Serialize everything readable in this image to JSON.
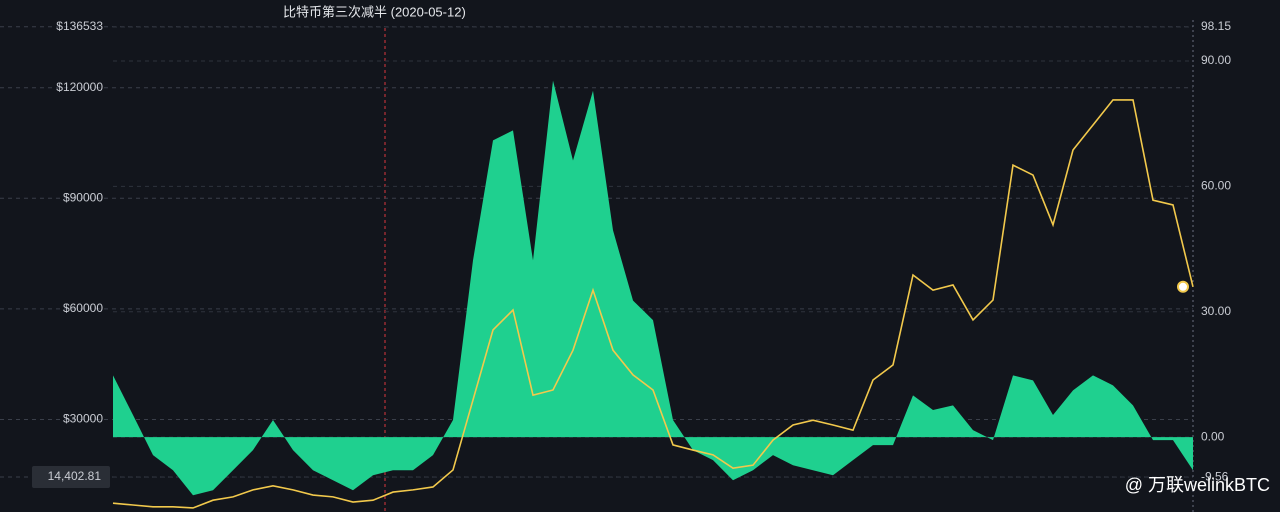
{
  "chart_data": {
    "type": "combo",
    "annotations": [
      "比特币第三次减半 (2020-05-12)"
    ],
    "watermark": "@ 万联welinkBTC",
    "ylim": [
      4900,
      143800
    ],
    "yticks": [
      {
        "value": 136533,
        "label": "$136533"
      },
      {
        "value": 120000,
        "label": "$120000"
      },
      {
        "value": 90000,
        "label": "$90000"
      },
      {
        "value": 60000,
        "label": "$60000"
      },
      {
        "value": 30000,
        "label": "$30000"
      },
      {
        "value": 14402.81,
        "label": "14,402.81"
      }
    ],
    "y2lim": [
      -17.9,
      104.6
    ],
    "y2ticks": [
      98.15,
      {
        "value": 90,
        "label": "90.00"
      },
      {
        "value": 60,
        "label": "60.00"
      },
      {
        "value": 30,
        "label": "30.00"
      },
      {
        "value": 0,
        "label": "0.00"
      },
      {
        "value": -9.56,
        "label": "-9.56"
      }
    ],
    "grid": true,
    "series": [
      {
        "type": "area",
        "axis": "y2",
        "color": "#1fd08f",
        "values": [
          14.8,
          5.3,
          -4.3,
          -7.9,
          -13.9,
          -12.7,
          -7.9,
          -3.1,
          4.1,
          -3.1,
          -7.9,
          -10.3,
          -12.7,
          -9.1,
          -7.9,
          -7.9,
          -4.3,
          4.1,
          42.3,
          71.0,
          73.4,
          42.3,
          85.3,
          66.2,
          82.9,
          49.5,
          32.7,
          28.0,
          4.1,
          -3.1,
          -5.5,
          -10.3,
          -7.9,
          -4.3,
          -6.7,
          -7.9,
          -9.1,
          -5.5,
          -1.9,
          -1.9,
          10.0,
          6.5,
          7.6,
          1.7,
          -0.7,
          14.8,
          13.6,
          5.3,
          11.2,
          14.8,
          12.4,
          7.6,
          -0.7,
          -0.7,
          -7.9
        ]
      },
      {
        "type": "line",
        "axis": "y",
        "color": "#f2c94c",
        "values": [
          7300,
          6800,
          6300,
          6300,
          6000,
          8100,
          9000,
          10900,
          12000,
          10900,
          9500,
          9000,
          7600,
          8100,
          10300,
          10900,
          11700,
          16300,
          35300,
          54300,
          59700,
          36600,
          38000,
          48800,
          65100,
          48800,
          42100,
          38000,
          23100,
          21700,
          20400,
          16800,
          17600,
          24400,
          28500,
          29800,
          28500,
          27100,
          40700,
          44800,
          69200,
          65100,
          66500,
          57000,
          62400,
          99000,
          96300,
          82800,
          103100,
          109900,
          116700,
          116700,
          89500,
          88200,
          66000
        ]
      }
    ]
  }
}
